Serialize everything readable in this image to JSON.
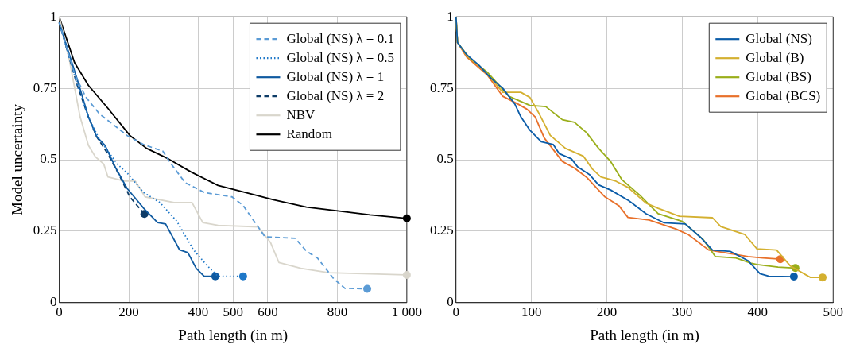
{
  "chart_data": [
    {
      "type": "line",
      "xlabel": "Path length (in m)",
      "ylabel": "Model uncertainty",
      "xlim": [
        0,
        1000
      ],
      "xticks": [
        0,
        200,
        400,
        500,
        600,
        800,
        {
          "value": 1000,
          "label": "1 000"
        }
      ],
      "ylim": [
        0,
        1
      ],
      "yticks": [
        0,
        0.25,
        0.5,
        0.75,
        1
      ],
      "grid": true,
      "legend": "top right",
      "series": [
        {
          "name": "Global (NS) λ = 0.1",
          "color": "#5b9bd5",
          "line_style": "dashed",
          "x": [
            0,
            44,
            76,
            116,
            148,
            195,
            243,
            298,
            322,
            362,
            418,
            497,
            529,
            592,
            679,
            711,
            743,
            790,
            822,
            886
          ],
          "values": [
            0.98,
            0.8,
            0.72,
            0.66,
            0.63,
            0.585,
            0.553,
            0.53,
            0.485,
            0.42,
            0.385,
            0.37,
            0.34,
            0.23,
            0.225,
            0.18,
            0.156,
            0.083,
            0.05,
            0.048
          ]
        },
        {
          "name": "Global (NS) λ = 0.5",
          "color": "#1f78c8",
          "line_style": "dotted",
          "x": [
            0,
            52,
            84,
            116,
            167,
            198,
            243,
            290,
            338,
            386,
            425,
            457,
            529
          ],
          "values": [
            0.98,
            0.76,
            0.65,
            0.57,
            0.485,
            0.45,
            0.385,
            0.35,
            0.285,
            0.185,
            0.13,
            0.092,
            0.092
          ]
        },
        {
          "name": "Global (NS) λ = 1",
          "color": "#0f5aa0",
          "line_style": "solid",
          "x": [
            0,
            52,
            84,
            108,
            132,
            163,
            195,
            243,
            283,
            306,
            346,
            370,
            394,
            417,
            449
          ],
          "values": [
            0.98,
            0.78,
            0.65,
            0.58,
            0.55,
            0.47,
            0.4,
            0.33,
            0.28,
            0.275,
            0.185,
            0.175,
            0.12,
            0.092,
            0.092
          ]
        },
        {
          "name": "Global (NS) λ = 2",
          "color": "#0d3b66",
          "line_style": "dashed",
          "x": [
            0,
            52,
            84,
            108,
            140,
            171,
            203,
            245
          ],
          "values": [
            0.98,
            0.76,
            0.65,
            0.58,
            0.52,
            0.45,
            0.37,
            0.31
          ]
        },
        {
          "name": "NBV",
          "color": "#d9d6cc",
          "line_style": "solid",
          "x": [
            0,
            29,
            60,
            84,
            104,
            128,
            140,
            187,
            219,
            247,
            330,
            382,
            413,
            457,
            572,
            608,
            632,
            695,
            775,
            1000
          ],
          "values": [
            1,
            0.85,
            0.65,
            0.55,
            0.51,
            0.485,
            0.44,
            0.425,
            0.425,
            0.37,
            0.35,
            0.35,
            0.28,
            0.27,
            0.265,
            0.21,
            0.14,
            0.12,
            0.105,
            0.097
          ]
        },
        {
          "name": "Random",
          "color": "#000000",
          "line_style": "solid",
          "x": [
            0,
            44,
            84,
            140,
            203,
            251,
            314,
            378,
            457,
            537,
            616,
            711,
            806,
            894,
            1000
          ],
          "values": [
            1,
            0.84,
            0.76,
            0.68,
            0.585,
            0.54,
            0.503,
            0.458,
            0.41,
            0.385,
            0.36,
            0.334,
            0.32,
            0.307,
            0.295
          ]
        }
      ]
    },
    {
      "type": "line",
      "xlabel": "Path length (in m)",
      "xlim": [
        0,
        500
      ],
      "xticks": [
        0,
        100,
        200,
        300,
        400,
        500
      ],
      "ylim": [
        0,
        1
      ],
      "yticks": [
        0,
        0.25,
        0.5,
        0.75,
        1
      ],
      "grid": true,
      "legend": "top right",
      "series": [
        {
          "name": "Global (NS)",
          "color": "#0b5ca8",
          "line_style": "solid",
          "x": [
            0,
            2,
            14,
            30,
            46,
            62,
            78,
            86,
            98,
            113,
            129,
            137,
            153,
            161,
            177,
            189,
            205,
            229,
            252,
            276,
            304,
            324,
            340,
            364,
            387,
            403,
            415,
            448
          ],
          "values": [
            1,
            0.91,
            0.868,
            0.832,
            0.786,
            0.75,
            0.695,
            0.65,
            0.603,
            0.563,
            0.553,
            0.521,
            0.503,
            0.476,
            0.448,
            0.412,
            0.394,
            0.357,
            0.311,
            0.279,
            0.275,
            0.229,
            0.184,
            0.179,
            0.147,
            0.101,
            0.092,
            0.091
          ]
        },
        {
          "name": "Global (B)",
          "color": "#d4b030",
          "line_style": "solid",
          "x": [
            0,
            2,
            14,
            30,
            46,
            62,
            86,
            98,
            109,
            125,
            145,
            169,
            181,
            192,
            212,
            228,
            252,
            268,
            296,
            340,
            351,
            383,
            399,
            425,
            443,
            470,
            486
          ],
          "values": [
            1,
            0.91,
            0.865,
            0.83,
            0.786,
            0.736,
            0.736,
            0.718,
            0.667,
            0.585,
            0.54,
            0.512,
            0.467,
            0.44,
            0.425,
            0.403,
            0.348,
            0.33,
            0.302,
            0.297,
            0.266,
            0.238,
            0.188,
            0.184,
            0.129,
            0.088,
            0.088
          ]
        },
        {
          "name": "Global (BS)",
          "color": "#9aae1a",
          "line_style": "solid",
          "x": [
            0,
            2,
            18,
            42,
            70,
            98,
            119,
            141,
            157,
            173,
            189,
            205,
            220,
            244,
            268,
            300,
            328,
            344,
            371,
            391,
            399,
            427,
            450
          ],
          "values": [
            1,
            0.91,
            0.855,
            0.805,
            0.722,
            0.69,
            0.686,
            0.64,
            0.631,
            0.595,
            0.54,
            0.494,
            0.43,
            0.375,
            0.311,
            0.284,
            0.22,
            0.161,
            0.156,
            0.138,
            0.133,
            0.124,
            0.121
          ]
        },
        {
          "name": "Global (BCS)",
          "color": "#e8702a",
          "line_style": "solid",
          "x": [
            0,
            2,
            14,
            42,
            62,
            82,
            94,
            105,
            117,
            141,
            157,
            173,
            197,
            216,
            228,
            256,
            292,
            308,
            335,
            367,
            387,
            407,
            430
          ],
          "values": [
            1,
            0.91,
            0.86,
            0.795,
            0.722,
            0.695,
            0.677,
            0.65,
            0.576,
            0.494,
            0.471,
            0.439,
            0.371,
            0.339,
            0.298,
            0.289,
            0.257,
            0.238,
            0.184,
            0.17,
            0.161,
            0.156,
            0.152
          ]
        }
      ]
    }
  ]
}
